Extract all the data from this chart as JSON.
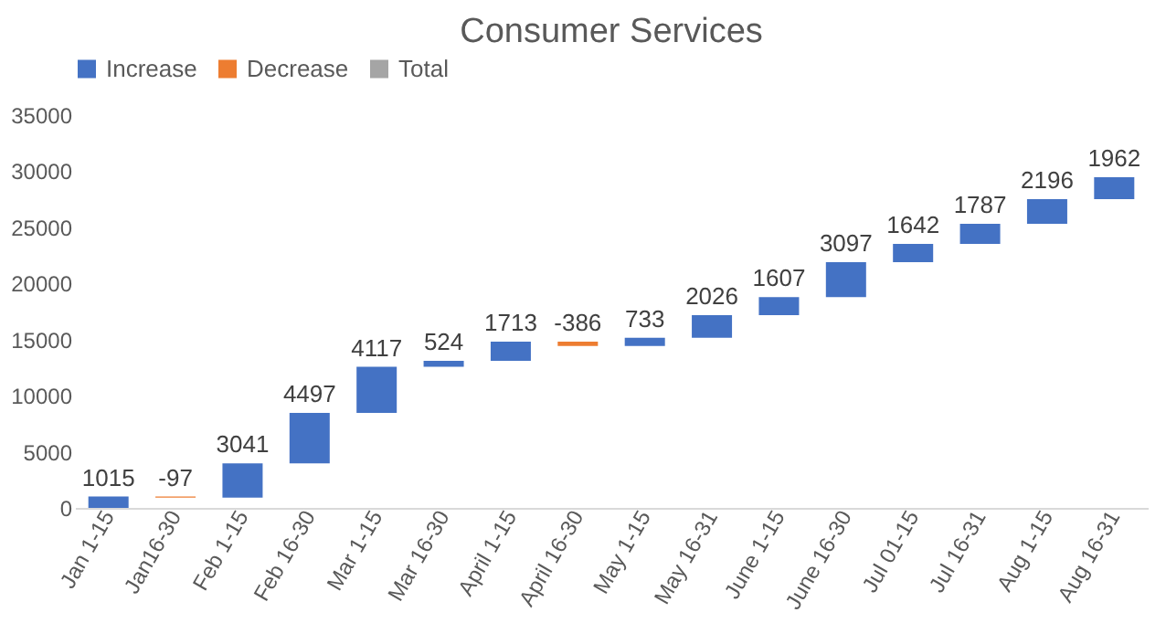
{
  "chart_data": {
    "type": "bar",
    "title": "Consumer Services",
    "categories": [
      "Jan 1-15",
      "Jan16-30",
      "Feb 1-15",
      "Feb 16-30",
      "Mar 1-15",
      "Mar 16-30",
      "April 1-15",
      "April 16-30",
      "May 1-15",
      "May 16-31",
      "June 1-15",
      "June 16-30",
      "Jul 01-15",
      "Jul 16-31",
      "Aug 1-15",
      "Aug 16-31"
    ],
    "series": [
      {
        "name": "Increase",
        "color": "#4472c4",
        "values": [
          1015,
          null,
          3041,
          4497,
          4117,
          524,
          1713,
          null,
          733,
          2026,
          1607,
          3097,
          1642,
          1787,
          2196,
          1962
        ],
        "base": [
          0,
          null,
          918,
          3959,
          8456,
          12573,
          13097,
          null,
          14424,
          15157,
          17183,
          18790,
          21887,
          23529,
          25316,
          27512
        ]
      },
      {
        "name": "Decrease",
        "color": "#ed7d31",
        "values": [
          null,
          -97,
          null,
          null,
          null,
          null,
          null,
          -386,
          null,
          null,
          null,
          null,
          null,
          null,
          null,
          null
        ],
        "base": [
          null,
          1015,
          null,
          null,
          null,
          null,
          null,
          14810,
          null,
          null,
          null,
          null,
          null,
          null,
          null,
          null
        ]
      },
      {
        "name": "Total",
        "color": "#a5a5a5",
        "values": [
          null,
          null,
          null,
          null,
          null,
          null,
          null,
          null,
          null,
          null,
          null,
          null,
          null,
          null,
          null,
          null
        ]
      }
    ],
    "ylim": [
      0,
      35000
    ],
    "yticks": [
      0,
      5000,
      10000,
      15000,
      20000,
      25000,
      30000,
      35000
    ],
    "data_labels": true,
    "legend": "top"
  }
}
